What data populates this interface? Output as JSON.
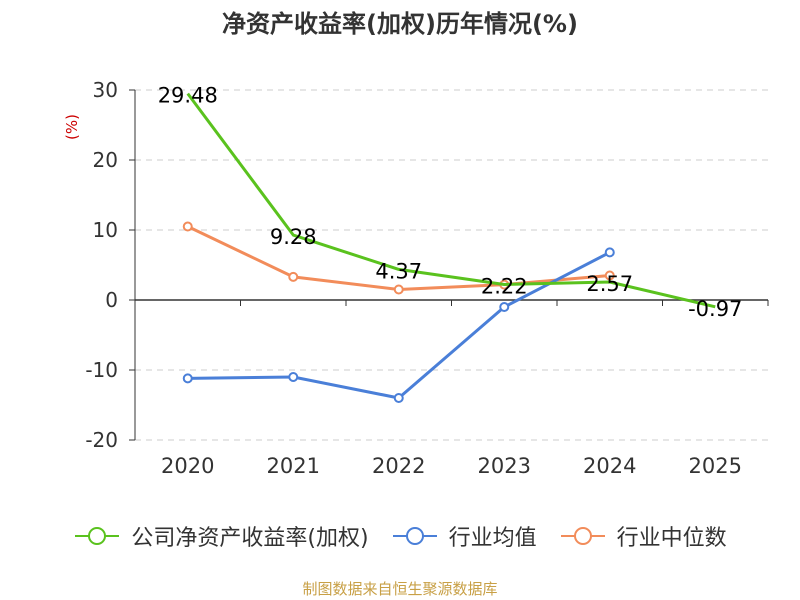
{
  "chart_data": {
    "type": "line",
    "title": "净资产收益率(加权)历年情况(%)",
    "ylabel": "(%)",
    "xlabel": "",
    "categories": [
      "2020",
      "2021",
      "2022",
      "2023",
      "2024",
      "2025"
    ],
    "ylim": [
      -20,
      30
    ],
    "yticks": [
      30,
      20,
      10,
      0,
      -10,
      -20
    ],
    "series": [
      {
        "name": "公司净资产收益率(加权)",
        "color": "#5ac21e",
        "values": [
          29.48,
          9.28,
          4.37,
          2.22,
          2.57,
          -0.97
        ],
        "labels": [
          "29.48",
          "9.28",
          "4.37",
          "2.22",
          "2.57",
          "-0.97"
        ]
      },
      {
        "name": "行业均值",
        "color": "#4a7fd8",
        "values": [
          -11.2,
          -11.0,
          -14.0,
          -1.0,
          6.8,
          null
        ]
      },
      {
        "name": "行业中位数",
        "color": "#f28c5a",
        "values": [
          10.5,
          3.3,
          1.5,
          2.2,
          3.5,
          null
        ]
      }
    ]
  },
  "source": "制图数据来自恒生聚源数据库"
}
